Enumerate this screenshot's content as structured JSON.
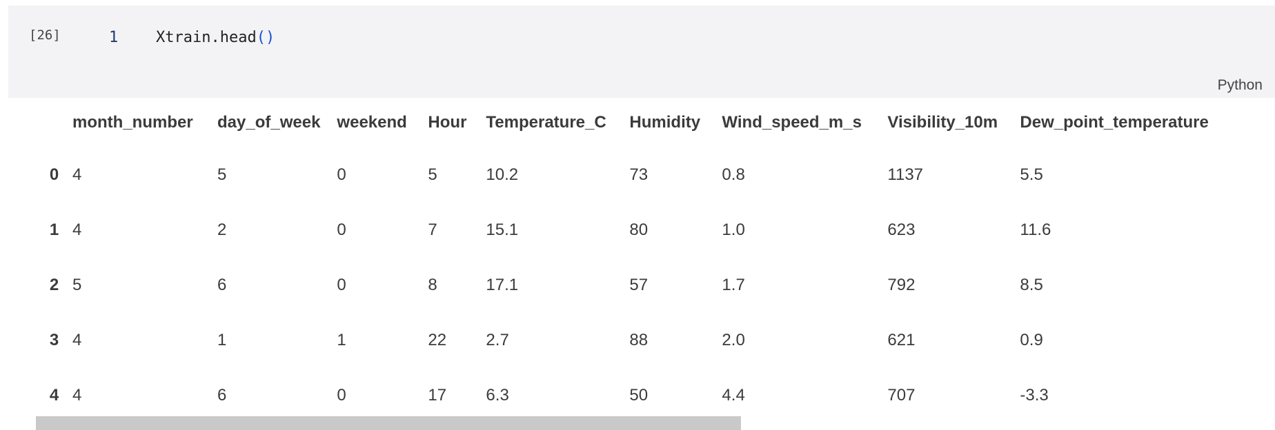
{
  "cell": {
    "execution_count": "[26]",
    "line_number": "1",
    "code_text": "Xtrain.head",
    "code_parens": "()",
    "language": "Python"
  },
  "table": {
    "columns": [
      "month_number",
      "day_of_week",
      "weekend",
      "Hour",
      "Temperature_C",
      "Humidity",
      "Wind_speed_m_s",
      "Visibility_10m",
      "Dew_point_temperature"
    ],
    "rows": [
      {
        "index": "0",
        "values": [
          "4",
          "5",
          "0",
          "5",
          "10.2",
          "73",
          "0.8",
          "1137",
          "5.5"
        ]
      },
      {
        "index": "1",
        "values": [
          "4",
          "2",
          "0",
          "7",
          "15.1",
          "80",
          "1.0",
          "623",
          "11.6"
        ]
      },
      {
        "index": "2",
        "values": [
          "5",
          "6",
          "0",
          "8",
          "17.1",
          "57",
          "1.7",
          "792",
          "8.5"
        ]
      },
      {
        "index": "3",
        "values": [
          "4",
          "1",
          "1",
          "22",
          "2.7",
          "88",
          "2.0",
          "621",
          "0.9"
        ]
      },
      {
        "index": "4",
        "values": [
          "4",
          "6",
          "0",
          "17",
          "6.3",
          "50",
          "4.4",
          "707",
          "-3.3"
        ]
      }
    ]
  }
}
